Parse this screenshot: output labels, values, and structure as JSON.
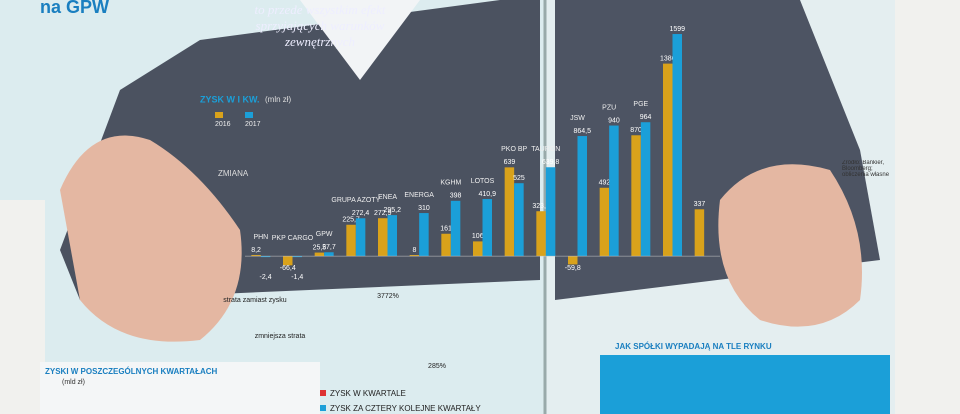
{
  "chart_data": {
    "type": "bar",
    "header": "na GPW",
    "subtitle": "to przede wszystkim efekt sprzyjających warunków zewnętrznych",
    "title": "ZYSK W I KW.",
    "unit": "(mln zł)",
    "change_label": "ZMIANA",
    "categories": [
      "PHN",
      "PKP CARGO",
      "GPW",
      "GRUPA AZOTY",
      "ENEA",
      "ENERGA",
      "KGHM",
      "LOTOS",
      "PKO BP",
      "TAURON",
      "JSW",
      "PZU",
      "PGE",
      null,
      null
    ],
    "series": [
      {
        "name": "2016",
        "color": "#d9a21b",
        "values": [
          8.2,
          -66.4,
          25.5,
          225.7,
          272.9,
          8,
          161,
          106,
          639,
          323.2,
          -59.8,
          492,
          870,
          1386,
          337
        ],
        "value_labels": [
          "8,2",
          "-66,4",
          "25,5",
          "225,7",
          "272,9",
          "8",
          "161",
          "106",
          "639",
          "323,2",
          "-59,8",
          "492",
          "870",
          "1386",
          "337"
        ]
      },
      {
        "name": "2017",
        "color": "#1b9fd8",
        "values": [
          -2.4,
          -1.4,
          27.7,
          272.4,
          295.2,
          310,
          398,
          410.9,
          525,
          639.8,
          864.5,
          940,
          964,
          1599,
          null
        ],
        "value_labels": [
          "-2,4",
          "-1,4",
          "27,7",
          "272,4",
          "295,2",
          "310",
          "398",
          "410,9",
          "525",
          "639,8",
          "864,5",
          "940",
          "964",
          "1599",
          null
        ]
      }
    ],
    "ylim": [
      -100,
      1700
    ],
    "annotations": [
      "strata zamiast zysku",
      "zmniejsza strata",
      "3772%",
      "285%"
    ],
    "quarterly_title": "ZYSKI W POSZCZEGÓLNYCH KWARTAŁACH",
    "quarterly_unit": "(mld zł)",
    "quarterly_legend": [
      "ZYSK W KWARTALE",
      "ZYSK ZA CZTERY KOLEJNE KWARTAŁY"
    ],
    "market_title": "JAK SPÓŁKI WYPADAJĄ NA TLE RYNKU",
    "source": "Źródło: Bankier, Bloomberg; obliczenia własne"
  }
}
